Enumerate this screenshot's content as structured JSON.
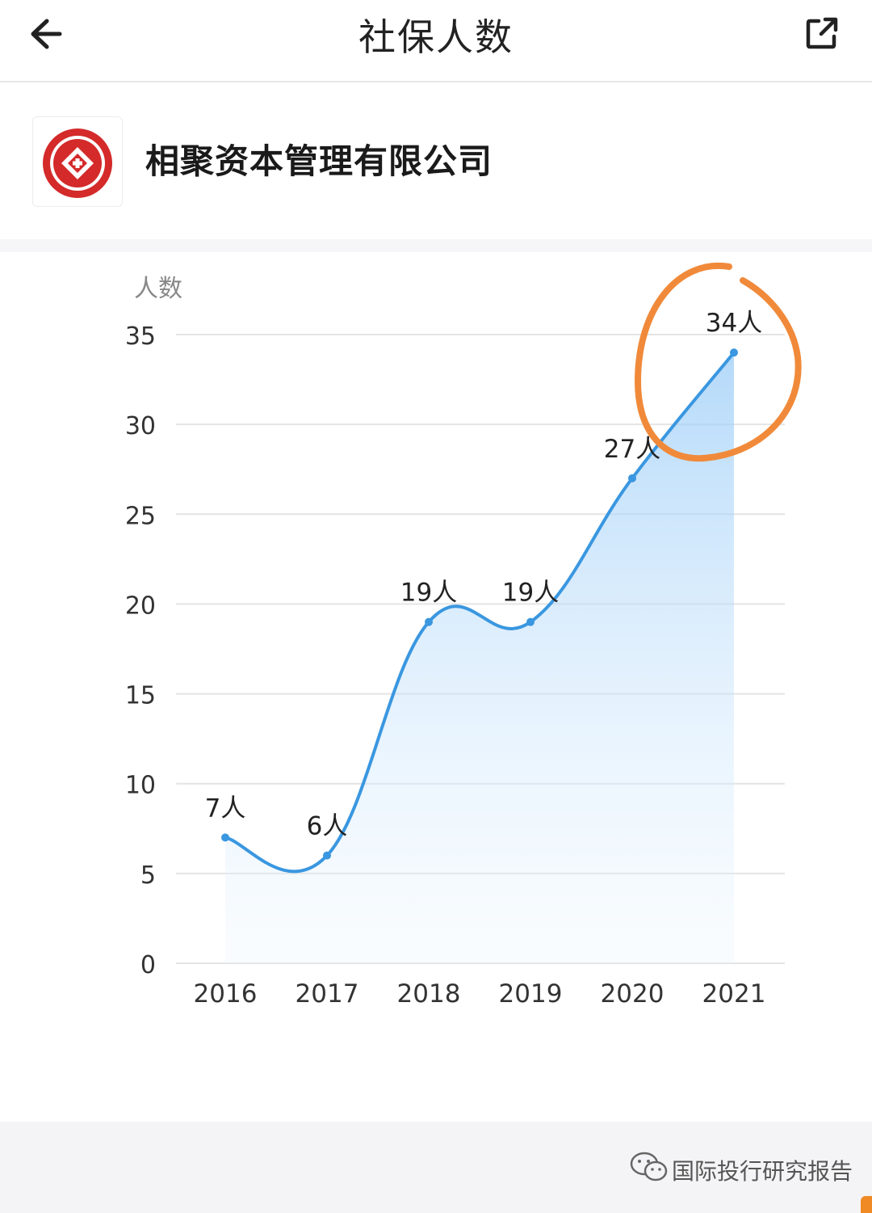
{
  "header": {
    "title": "社保人数",
    "back_icon": "arrow-left-icon",
    "share_icon": "external-link-icon"
  },
  "company": {
    "name": "相聚资本管理有限公司",
    "logo_icon": "company-logo-icon"
  },
  "chart_data": {
    "type": "area",
    "ylabel": "人数",
    "ylim": [
      0,
      35
    ],
    "yticks": [
      "35",
      "30",
      "25",
      "20",
      "15",
      "10",
      "5",
      "0"
    ],
    "categories": [
      "2016",
      "2017",
      "2018",
      "2019",
      "2020",
      "2021"
    ],
    "values": [
      7,
      6,
      19,
      19,
      27,
      34
    ],
    "data_labels": [
      "7人",
      "6人",
      "19人",
      "19人",
      "27人",
      "34人"
    ],
    "grid": true,
    "line_color": "#3a97e0",
    "fill_color": "#bfdffb",
    "highlight_circle_color": "#f08a3a"
  },
  "footer": {
    "wechat_icon": "wechat-icon",
    "text": "国际投行研究报告",
    "accent": "#f08a24"
  }
}
